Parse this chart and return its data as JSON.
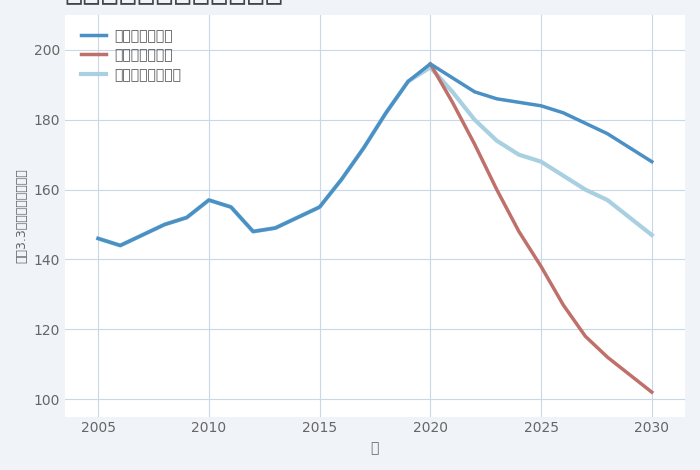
{
  "xlabel": "年",
  "ylabel": "平（3.3㎡）単価（万円）",
  "background_color": "#f0f4f8",
  "plot_background_color": "#ffffff",
  "grid_color": "#c8d8e8",
  "ylim": [
    95,
    210
  ],
  "yticks": [
    100,
    120,
    140,
    160,
    180,
    200
  ],
  "xticks": [
    2005,
    2010,
    2015,
    2020,
    2025,
    2030
  ],
  "xlim": [
    2003.5,
    2031.5
  ],
  "legend_labels": [
    "グッドシナリオ",
    "バッドシナリオ",
    "ノーマルシナリオ"
  ],
  "good_color": "#4a90c4",
  "bad_color": "#c0706a",
  "normal_color": "#a8d0e0",
  "good_x": [
    2005,
    2006,
    2007,
    2008,
    2009,
    2010,
    2011,
    2012,
    2013,
    2014,
    2015,
    2016,
    2017,
    2018,
    2019,
    2020,
    2021,
    2022,
    2023,
    2024,
    2025,
    2026,
    2027,
    2028,
    2029,
    2030
  ],
  "good_y": [
    146,
    144,
    147,
    150,
    152,
    157,
    155,
    148,
    149,
    152,
    155,
    163,
    172,
    182,
    191,
    196,
    192,
    188,
    186,
    185,
    184,
    182,
    179,
    176,
    172,
    168
  ],
  "bad_x": [
    2020,
    2021,
    2022,
    2023,
    2024,
    2025,
    2026,
    2027,
    2028,
    2029,
    2030
  ],
  "bad_y": [
    196,
    185,
    173,
    160,
    148,
    138,
    127,
    118,
    112,
    107,
    102
  ],
  "normal_x": [
    2005,
    2006,
    2007,
    2008,
    2009,
    2010,
    2011,
    2012,
    2013,
    2014,
    2015,
    2016,
    2017,
    2018,
    2019,
    2020,
    2021,
    2022,
    2023,
    2024,
    2025,
    2026,
    2027,
    2028,
    2029,
    2030
  ],
  "normal_y": [
    146,
    144,
    147,
    150,
    152,
    157,
    155,
    148,
    149,
    152,
    155,
    163,
    172,
    182,
    191,
    195,
    188,
    180,
    174,
    170,
    168,
    164,
    160,
    157,
    152,
    147
  ],
  "title_fontsize": 22,
  "axis_fontsize": 10,
  "legend_fontsize": 10,
  "line_width": 2.5
}
